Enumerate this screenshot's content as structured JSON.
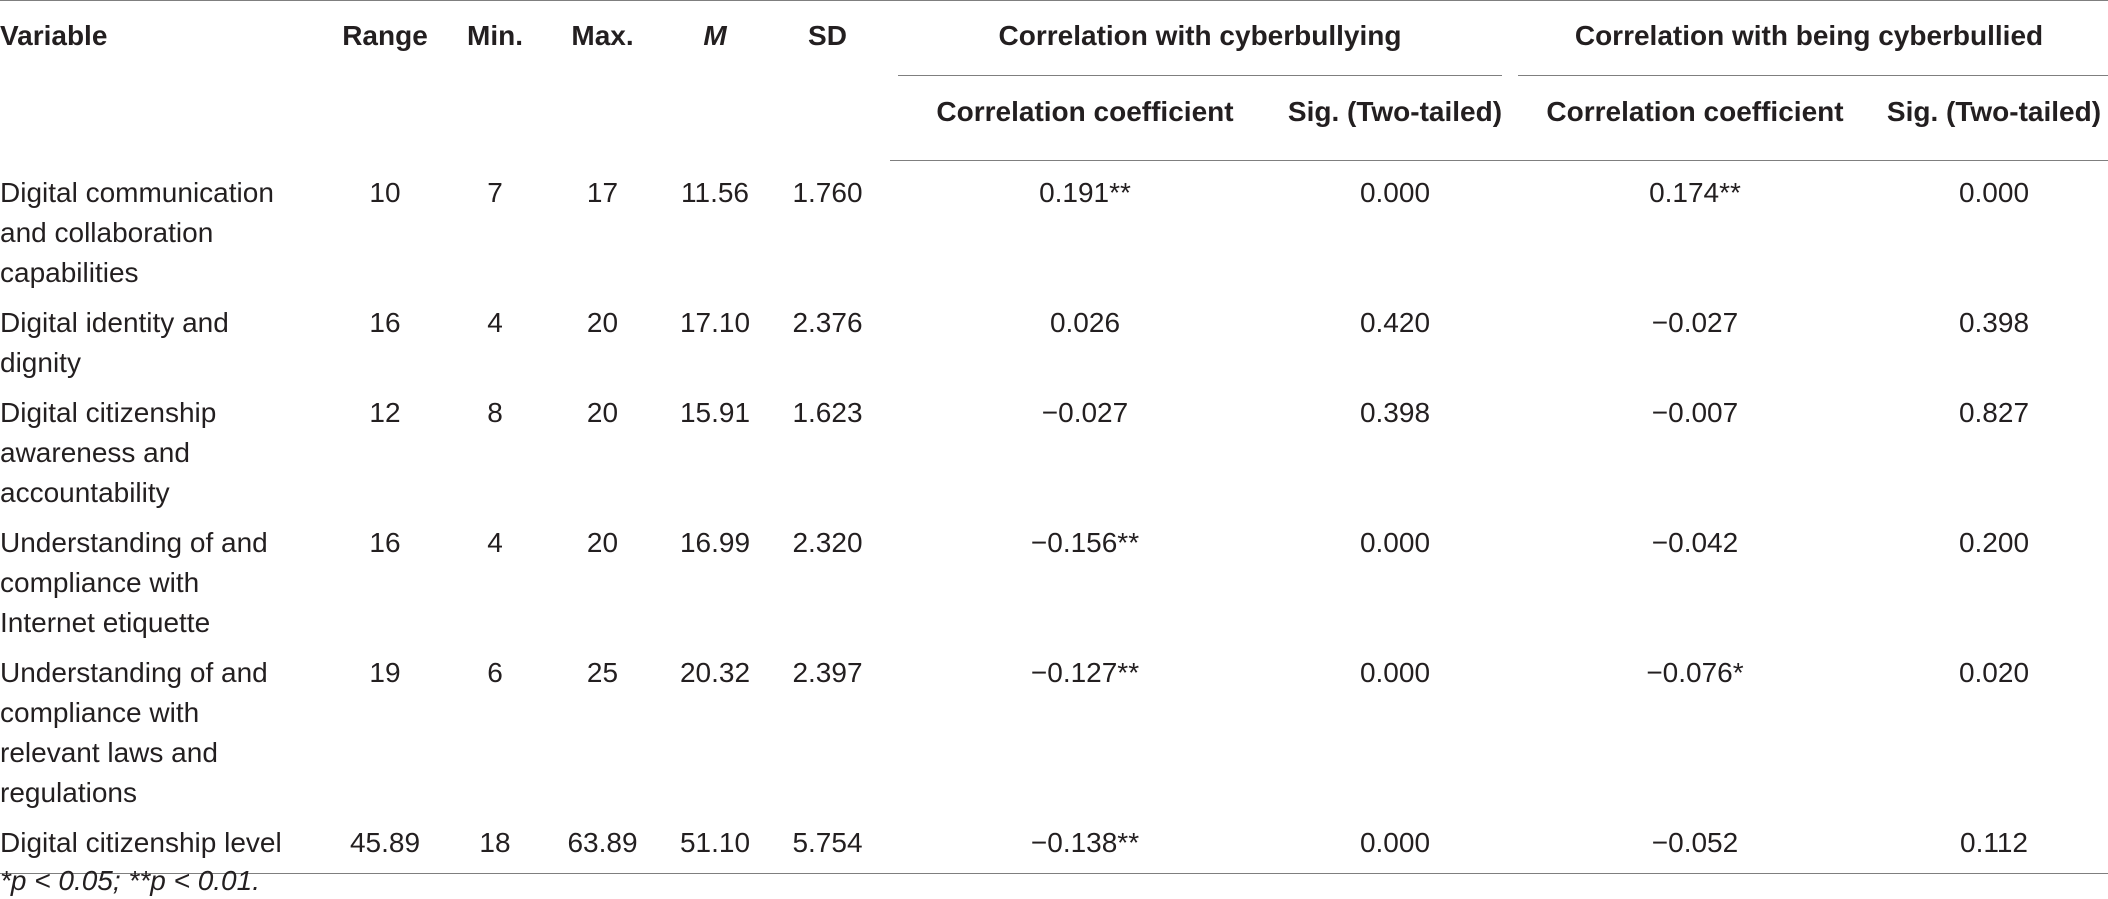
{
  "table": {
    "headers": {
      "variable": "Variable",
      "range": "Range",
      "min": "Min.",
      "max": "Max.",
      "mean": "M",
      "sd": "SD",
      "group_cyberbullying": "Correlation with cyberbullying",
      "group_cyberbullied": "Correlation with being cyberbullied",
      "corr_coef": "Correlation coefficient",
      "sig": "Sig. (Two-tailed)"
    },
    "rows": [
      {
        "variable_lines": [
          "Digital communication",
          "and collaboration",
          "capabilities"
        ],
        "range": "10",
        "min": "7",
        "max": "17",
        "mean": "11.56",
        "sd": "1.760",
        "cb_corr": "0.191**",
        "cb_sig": "0.000",
        "bc_corr": "0.174**",
        "bc_sig": "0.000"
      },
      {
        "variable_lines": [
          "Digital identity and",
          "dignity"
        ],
        "range": "16",
        "min": "4",
        "max": "20",
        "mean": "17.10",
        "sd": "2.376",
        "cb_corr": "0.026",
        "cb_sig": "0.420",
        "bc_corr": "−0.027",
        "bc_sig": "0.398"
      },
      {
        "variable_lines": [
          "Digital citizenship",
          "awareness and",
          "accountability"
        ],
        "range": "12",
        "min": "8",
        "max": "20",
        "mean": "15.91",
        "sd": "1.623",
        "cb_corr": "−0.027",
        "cb_sig": "0.398",
        "bc_corr": "−0.007",
        "bc_sig": "0.827"
      },
      {
        "variable_lines": [
          "Understanding of and",
          "compliance with",
          "Internet etiquette"
        ],
        "range": "16",
        "min": "4",
        "max": "20",
        "mean": "16.99",
        "sd": "2.320",
        "cb_corr": "−0.156**",
        "cb_sig": "0.000",
        "bc_corr": "−0.042",
        "bc_sig": "0.200"
      },
      {
        "variable_lines": [
          "Understanding of and",
          "compliance with",
          "relevant laws and",
          "regulations"
        ],
        "range": "19",
        "min": "6",
        "max": "25",
        "mean": "20.32",
        "sd": "2.397",
        "cb_corr": "−0.127**",
        "cb_sig": "0.000",
        "bc_corr": "−0.076*",
        "bc_sig": "0.020"
      },
      {
        "variable_lines": [
          "Digital citizenship level"
        ],
        "range": "45.89",
        "min": "18",
        "max": "63.89",
        "mean": "51.10",
        "sd": "5.754",
        "cb_corr": "−0.138**",
        "cb_sig": "0.000",
        "bc_corr": "−0.052",
        "bc_sig": "0.112"
      }
    ],
    "footnote": "*p < 0.05; **p < 0.01."
  }
}
